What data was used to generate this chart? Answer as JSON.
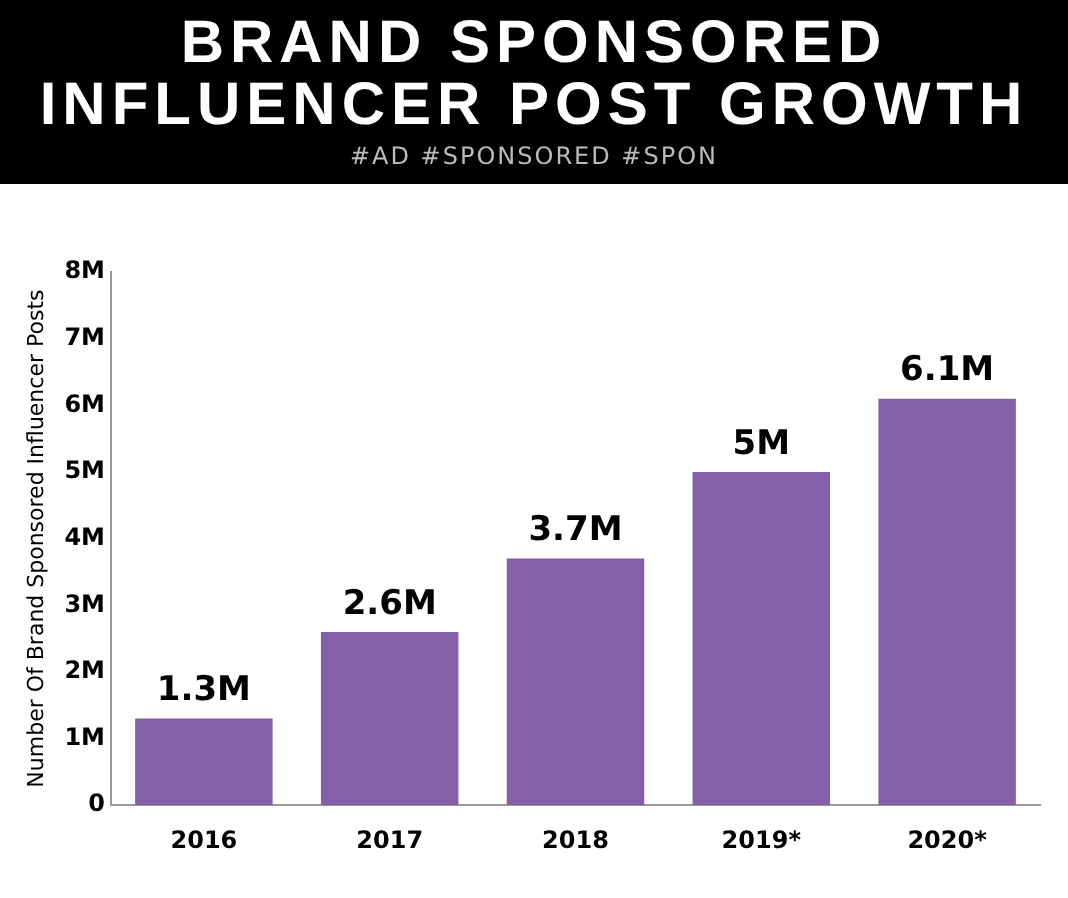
{
  "chart_data": {
    "type": "bar",
    "title": "BRAND SPONSORED INFLUENCER POST GROWTH",
    "subtitle": "#AD #SPONSORED #SPON",
    "ylabel": "Number Of Brand Sponsored Influencer Posts",
    "categories": [
      "2016",
      "2017",
      "2018",
      "2019*",
      "2020*"
    ],
    "values": [
      1.3,
      2.6,
      3.7,
      5,
      6.1
    ],
    "color": "#8460a8",
    "value_labels": [
      "1.3M",
      "2.6M",
      "3.7M",
      "5M",
      "6.1M"
    ],
    "ylim": [
      0,
      8
    ],
    "yticks": [
      0,
      {
        "value": 1,
        "label": "1M"
      },
      {
        "value": 2,
        "label": "2M"
      },
      {
        "value": 3,
        "label": "3M"
      },
      {
        "value": 4,
        "label": "4M"
      },
      {
        "value": 5,
        "label": "5M"
      },
      {
        "value": 6,
        "label": "6M"
      },
      {
        "value": 7,
        "label": "7M"
      },
      {
        "value": 8,
        "label": "8M"
      }
    ]
  }
}
